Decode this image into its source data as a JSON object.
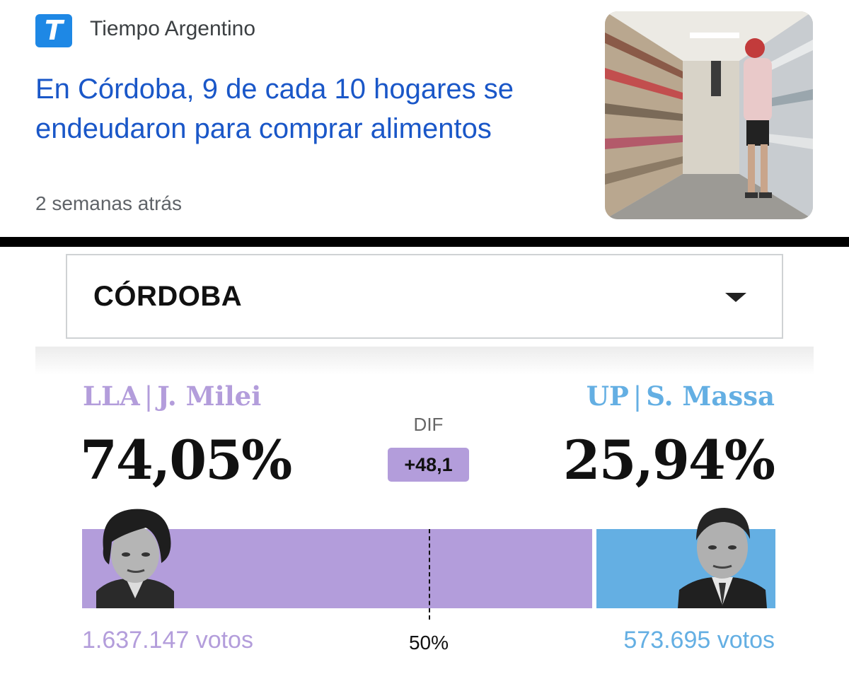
{
  "news": {
    "source_logo_letter": "T",
    "source_name": "Tiempo Argentino",
    "headline": "En Córdoba, 9 de cada 10 hogares se endeudaron para comprar alimentos",
    "time": "2 semanas atrás",
    "thumbnail_icon": "supermarket-aisle-photo"
  },
  "results": {
    "province_select": "CÓRDOBA",
    "left": {
      "party": "LLA",
      "candidate": "J. Milei",
      "separator": "|",
      "percent": "74,05%",
      "votes": "1.637.147 votos",
      "share": 74.05,
      "color": "#b39ddb"
    },
    "right": {
      "party": "UP",
      "candidate": "S. Massa",
      "separator": "|",
      "percent": "25,94%",
      "votes": "573.695 votos",
      "share": 25.94,
      "color": "#64afe3"
    },
    "dif_label": "DIF",
    "dif_value": "+48,1",
    "midpoint_label": "50%"
  }
}
